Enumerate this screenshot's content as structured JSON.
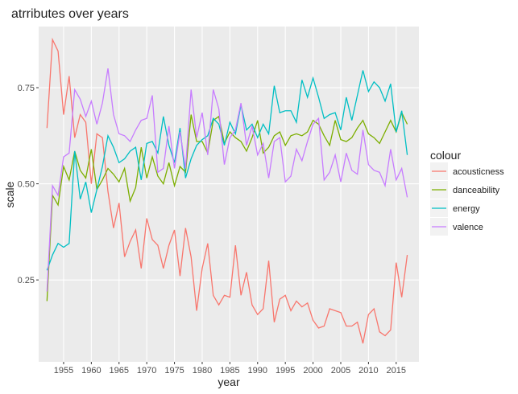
{
  "chart_data": {
    "type": "line",
    "title": "atrributes over years",
    "xlabel": "year",
    "ylabel": "scale",
    "legend_title": "colour",
    "legend": "right",
    "grid": true,
    "x": [
      1952,
      1953,
      1954,
      1955,
      1956,
      1957,
      1958,
      1959,
      1960,
      1961,
      1962,
      1963,
      1964,
      1965,
      1966,
      1967,
      1968,
      1969,
      1970,
      1971,
      1972,
      1973,
      1974,
      1975,
      1976,
      1977,
      1978,
      1979,
      1980,
      1981,
      1982,
      1983,
      1984,
      1985,
      1986,
      1987,
      1988,
      1989,
      1990,
      1991,
      1992,
      1993,
      1994,
      1995,
      1996,
      1997,
      1998,
      1999,
      2000,
      2001,
      2002,
      2003,
      2004,
      2005,
      2006,
      2007,
      2008,
      2009,
      2010,
      2011,
      2012,
      2013,
      2014,
      2015,
      2016,
      2017
    ],
    "xlim": [
      1950.5,
      2019.1
    ],
    "xticks": [
      1955,
      1960,
      1965,
      1970,
      1975,
      1980,
      1985,
      1990,
      1995,
      2000,
      2005,
      2010,
      2015
    ],
    "ylim": [
      0.037,
      0.909
    ],
    "yticks": [
      0.25,
      {
        "value": 0.5,
        "label": "0.50"
      },
      0.75
    ],
    "series": [
      {
        "name": "acousticness",
        "color": "#f8766d",
        "values": [
          0.645,
          0.875,
          0.845,
          0.68,
          0.78,
          0.62,
          0.68,
          0.66,
          0.5,
          0.63,
          0.62,
          0.48,
          0.385,
          0.45,
          0.31,
          0.35,
          0.38,
          0.28,
          0.41,
          0.355,
          0.34,
          0.28,
          0.34,
          0.38,
          0.26,
          0.385,
          0.31,
          0.17,
          0.28,
          0.345,
          0.21,
          0.185,
          0.21,
          0.205,
          0.34,
          0.21,
          0.27,
          0.185,
          0.16,
          0.175,
          0.3,
          0.14,
          0.2,
          0.21,
          0.17,
          0.195,
          0.18,
          0.19,
          0.145,
          0.125,
          0.13,
          0.175,
          0.17,
          0.165,
          0.13,
          0.13,
          0.14,
          0.085,
          0.16,
          0.175,
          0.115,
          0.105,
          0.12,
          0.295,
          0.205,
          0.315
        ]
      },
      {
        "name": "danceability",
        "color": "#7cae00",
        "values": [
          0.195,
          0.47,
          0.445,
          0.545,
          0.51,
          0.585,
          0.535,
          0.515,
          0.59,
          0.485,
          0.51,
          0.54,
          0.525,
          0.505,
          0.54,
          0.455,
          0.49,
          0.595,
          0.515,
          0.57,
          0.52,
          0.5,
          0.555,
          0.495,
          0.545,
          0.53,
          0.68,
          0.61,
          0.61,
          0.58,
          0.665,
          0.675,
          0.605,
          0.635,
          0.62,
          0.61,
          0.585,
          0.62,
          0.665,
          0.58,
          0.595,
          0.625,
          0.635,
          0.6,
          0.625,
          0.63,
          0.625,
          0.635,
          0.665,
          0.655,
          0.625,
          0.6,
          0.665,
          0.615,
          0.61,
          0.62,
          0.645,
          0.665,
          0.63,
          0.62,
          0.605,
          0.635,
          0.665,
          0.635,
          0.685,
          0.655
        ]
      },
      {
        "name": "energy",
        "color": "#00bfc4",
        "values": [
          0.275,
          0.315,
          0.345,
          0.335,
          0.345,
          0.585,
          0.46,
          0.505,
          0.425,
          0.485,
          0.545,
          0.625,
          0.595,
          0.555,
          0.565,
          0.585,
          0.595,
          0.51,
          0.605,
          0.61,
          0.58,
          0.675,
          0.6,
          0.555,
          0.645,
          0.515,
          0.565,
          0.6,
          0.615,
          0.625,
          0.67,
          0.655,
          0.6,
          0.66,
          0.63,
          0.705,
          0.64,
          0.655,
          0.62,
          0.655,
          0.63,
          0.755,
          0.685,
          0.69,
          0.69,
          0.66,
          0.77,
          0.725,
          0.775,
          0.725,
          0.67,
          0.68,
          0.685,
          0.64,
          0.725,
          0.665,
          0.73,
          0.795,
          0.74,
          0.765,
          0.75,
          0.715,
          0.76,
          0.635,
          0.69,
          0.575
        ]
      },
      {
        "name": "valence",
        "color": "#c77cff",
        "values": [
          0.22,
          0.495,
          0.47,
          0.57,
          0.58,
          0.745,
          0.72,
          0.675,
          0.715,
          0.655,
          0.71,
          0.8,
          0.68,
          0.63,
          0.625,
          0.61,
          0.64,
          0.665,
          0.67,
          0.73,
          0.53,
          0.54,
          0.65,
          0.54,
          0.635,
          0.54,
          0.745,
          0.62,
          0.685,
          0.575,
          0.745,
          0.695,
          0.55,
          0.62,
          0.64,
          0.71,
          0.6,
          0.65,
          0.575,
          0.605,
          0.515,
          0.61,
          0.62,
          0.505,
          0.52,
          0.59,
          0.56,
          0.61,
          0.655,
          0.67,
          0.51,
          0.53,
          0.575,
          0.505,
          0.58,
          0.535,
          0.525,
          0.64,
          0.55,
          0.535,
          0.53,
          0.495,
          0.59,
          0.51,
          0.54,
          0.465
        ]
      }
    ]
  }
}
